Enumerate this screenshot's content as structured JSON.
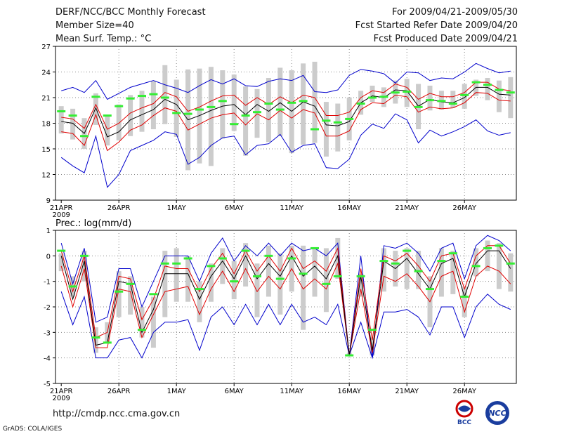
{
  "header": {
    "title": "DERF/NCC/BCC Monthly Forecast",
    "member_size": "Member Size=40",
    "variable": "Mean Surf. Temp.: °C",
    "period": "For 2009/04/21-2009/05/30",
    "fcst_started": "Fcst Started Refer Date 2009/04/20",
    "fcst_produced": "Fcst Produced Date 2009/04/21"
  },
  "footer": {
    "url": "http://cmdp.ncc.cma.gov.cn",
    "credit": "GrADS: COLA/IGES",
    "logo_bcc": "BCC",
    "logo_ncc": "NCC"
  },
  "colors": {
    "mean": "#000000",
    "spread": "#e00000",
    "envelope": "#0000cc",
    "obs": "#33ee33",
    "box": "#cccccc"
  },
  "chart_data": [
    {
      "type": "line",
      "title": "Mean Surf. Temp.: °C",
      "xlabel": "",
      "ylabel": "°C",
      "x_ticks": [
        "21APR\n2009",
        "26APR",
        "1MAY",
        "6MAY",
        "11MAY",
        "16MAY",
        "21MAY",
        "26MAY"
      ],
      "ylim": [
        9,
        27
      ],
      "yticks": [
        9,
        12,
        15,
        18,
        21,
        24,
        27
      ],
      "days": 40,
      "series": [
        {
          "name": "mean",
          "values": [
            18.2,
            18.0,
            16.8,
            19.8,
            16.4,
            17.0,
            18.4,
            19.0,
            19.6,
            20.8,
            20.2,
            18.4,
            18.9,
            19.5,
            20.0,
            20.2,
            19.0,
            20.2,
            19.4,
            20.4,
            19.4,
            20.5,
            20.0,
            17.8,
            17.7,
            18.2,
            20.4,
            21.2,
            21.0,
            21.9,
            21.8,
            20.0,
            20.8,
            20.5,
            20.4,
            21.0,
            22.2,
            22.2,
            21.4,
            21.3
          ]
        },
        {
          "name": "upper",
          "values": [
            18.7,
            18.5,
            17.4,
            20.2,
            17.3,
            18.0,
            19.2,
            19.8,
            20.3,
            21.6,
            21.1,
            19.4,
            19.9,
            20.6,
            21.2,
            21.3,
            20.1,
            21.0,
            20.2,
            21.1,
            20.4,
            21.3,
            21.0,
            18.9,
            18.9,
            19.3,
            21.0,
            21.8,
            21.6,
            22.6,
            22.2,
            20.8,
            21.5,
            21.1,
            21.1,
            21.6,
            22.8,
            22.8,
            22.0,
            21.8
          ]
        },
        {
          "name": "lower",
          "values": [
            17.0,
            16.8,
            15.4,
            19.0,
            14.8,
            15.8,
            17.2,
            17.8,
            18.9,
            19.8,
            19.4,
            17.2,
            17.9,
            18.6,
            19.0,
            19.2,
            17.8,
            19.1,
            18.4,
            19.5,
            18.6,
            19.6,
            19.2,
            16.5,
            16.5,
            17.1,
            19.6,
            20.4,
            20.3,
            21.3,
            21.1,
            19.3,
            19.9,
            19.7,
            19.8,
            20.4,
            21.6,
            21.5,
            20.7,
            20.6
          ]
        },
        {
          "name": "max",
          "values": [
            21.8,
            22.2,
            21.6,
            23.0,
            20.8,
            21.5,
            22.2,
            22.6,
            23.0,
            22.5,
            22.1,
            21.6,
            22.4,
            23.1,
            22.6,
            23.2,
            22.4,
            22.3,
            22.9,
            23.2,
            23.0,
            23.6,
            21.7,
            21.6,
            21.9,
            23.6,
            24.3,
            24.1,
            23.8,
            22.7,
            24.0,
            23.9,
            23.0,
            23.3,
            23.2,
            24.0,
            25.0,
            24.4,
            23.9,
            24.1
          ]
        },
        {
          "name": "min",
          "values": [
            14.0,
            13.0,
            12.2,
            16.5,
            10.5,
            12.0,
            14.8,
            15.4,
            16.0,
            17.0,
            16.7,
            13.2,
            14.0,
            15.4,
            16.3,
            16.5,
            14.3,
            15.4,
            15.6,
            16.7,
            14.6,
            15.4,
            15.6,
            12.8,
            12.7,
            13.8,
            16.6,
            17.9,
            17.4,
            19.1,
            18.4,
            15.7,
            17.2,
            16.5,
            17.0,
            17.6,
            18.4,
            17.1,
            16.6,
            16.9
          ]
        },
        {
          "name": "box_hi",
          "values": [
            20.0,
            19.7,
            18.6,
            21.5,
            18.8,
            20.2,
            21.3,
            21.8,
            22.9,
            24.8,
            23.1,
            24.3,
            24.4,
            24.6,
            24.2,
            23.7,
            22.3,
            22.0,
            23.3,
            24.5,
            24.2,
            25.0,
            25.2,
            20.5,
            20.3,
            21.0,
            21.8,
            22.4,
            22.2,
            23.0,
            23.2,
            22.6,
            22.4,
            21.8,
            21.8,
            22.6,
            23.1,
            23.3,
            23.0,
            23.4
          ]
        },
        {
          "name": "box_lo",
          "values": [
            16.8,
            16.1,
            15.0,
            17.8,
            15.4,
            16.0,
            16.5,
            17.0,
            17.3,
            17.9,
            16.4,
            12.5,
            13.3,
            13.0,
            16.2,
            17.1,
            14.2,
            16.3,
            15.8,
            16.5,
            14.5,
            15.5,
            15.7,
            14.1,
            14.7,
            16.0,
            19.0,
            20.5,
            19.9,
            20.3,
            19.9,
            17.3,
            19.5,
            19.6,
            19.8,
            19.7,
            21.2,
            20.7,
            19.3,
            18.6
          ]
        },
        {
          "name": "obs",
          "values": [
            19.4,
            18.9,
            16.5,
            21.1,
            18.9,
            20.0,
            20.9,
            21.2,
            21.4,
            21.0,
            19.2,
            19.1,
            19.6,
            19.9,
            20.6,
            17.9,
            18.9,
            19.3,
            20.3,
            19.6,
            20.4,
            20.6,
            17.3,
            18.3,
            18.1,
            18.5,
            20.3,
            21.0,
            21.1,
            21.6,
            21.7,
            19.9,
            20.7,
            20.6,
            20.3,
            21.3,
            22.8,
            22.5,
            21.9,
            21.6
          ]
        }
      ]
    },
    {
      "type": "line",
      "title": "Prec.: log(mm/d)",
      "xlabel": "",
      "ylabel": "log(mm/d)",
      "x_ticks": [
        "21APR\n2009",
        "26APR",
        "1MAY",
        "6MAY",
        "11MAY",
        "16MAY",
        "21MAY",
        "26MAY"
      ],
      "ylim": [
        -5,
        1
      ],
      "yticks": [
        -5,
        -4,
        -3,
        -2,
        -1,
        0,
        1
      ],
      "days": 40,
      "series": [
        {
          "name": "mean",
          "values": [
            0.0,
            -1.7,
            -0.2,
            -3.5,
            -3.4,
            -1.0,
            -1.1,
            -3.0,
            -2.1,
            -0.7,
            -0.7,
            -0.7,
            -1.7,
            -0.8,
            -0.2,
            -0.9,
            0.0,
            -0.9,
            -0.3,
            -0.8,
            0.0,
            -0.8,
            -0.4,
            -0.9,
            0.0,
            -3.9,
            -0.8,
            -3.7,
            -0.2,
            -0.5,
            -0.1,
            -0.7,
            -1.3,
            -0.3,
            -0.1,
            -1.6,
            -0.3,
            0.2,
            0.2,
            -0.5
          ]
        },
        {
          "name": "upper",
          "values": [
            0.2,
            -1.4,
            0.0,
            -3.2,
            -3.0,
            -0.8,
            -0.9,
            -2.5,
            -1.7,
            -0.4,
            -0.5,
            -0.5,
            -1.4,
            -0.5,
            0.1,
            -0.7,
            0.2,
            -0.6,
            0.0,
            -0.6,
            0.3,
            -0.5,
            -0.2,
            -0.6,
            0.3,
            -3.9,
            -0.5,
            -3.3,
            0.0,
            -0.2,
            0.1,
            -0.4,
            -1.0,
            0.0,
            0.1,
            -1.3,
            0.0,
            0.4,
            0.4,
            -0.3
          ]
        },
        {
          "name": "lower",
          "values": [
            -0.4,
            -2.0,
            -0.5,
            -3.6,
            -3.6,
            -1.3,
            -1.4,
            -3.2,
            -2.3,
            -1.4,
            -1.3,
            -1.2,
            -2.3,
            -1.3,
            -0.6,
            -1.4,
            -0.5,
            -1.4,
            -0.8,
            -1.3,
            -0.5,
            -1.3,
            -0.9,
            -1.3,
            -0.3,
            -3.9,
            -1.3,
            -3.8,
            -0.8,
            -1.0,
            -0.7,
            -1.2,
            -1.8,
            -0.8,
            -0.6,
            -2.2,
            -0.8,
            -0.4,
            -0.6,
            -1.1
          ]
        },
        {
          "name": "max",
          "values": [
            0.5,
            -1.1,
            0.3,
            -2.6,
            -2.4,
            -0.5,
            -0.5,
            -2.0,
            -1.0,
            0.0,
            0.0,
            0.0,
            -1.0,
            0.1,
            0.7,
            -0.2,
            0.4,
            0.0,
            0.5,
            0.0,
            0.5,
            0.2,
            0.3,
            0.0,
            0.5,
            -3.9,
            0.0,
            -4.0,
            0.4,
            0.3,
            0.5,
            0.1,
            -0.6,
            0.3,
            0.5,
            -0.9,
            0.4,
            0.8,
            0.6,
            0.2
          ]
        },
        {
          "name": "min",
          "values": [
            -1.4,
            -2.7,
            -1.6,
            -4.0,
            -4.0,
            -3.3,
            -3.2,
            -4.0,
            -3.0,
            -2.6,
            -2.6,
            -2.5,
            -3.7,
            -2.4,
            -2.0,
            -2.7,
            -1.9,
            -2.7,
            -1.9,
            -2.7,
            -1.9,
            -2.6,
            -2.4,
            -2.7,
            -1.9,
            -3.9,
            -2.6,
            -4.0,
            -2.2,
            -2.2,
            -2.1,
            -2.4,
            -3.1,
            -2.0,
            -2.0,
            -3.2,
            -2.0,
            -1.5,
            -1.9,
            -2.1
          ]
        },
        {
          "name": "box_hi",
          "values": [
            0.1,
            -0.8,
            0.2,
            -2.8,
            -2.6,
            -0.6,
            -0.8,
            -2.0,
            -1.6,
            0.2,
            0.3,
            0.0,
            -1.0,
            -0.3,
            0.3,
            -0.2,
            0.5,
            -0.3,
            0.4,
            0.1,
            0.4,
            0.4,
            0.3,
            0.3,
            0.7,
            -3.8,
            -0.7,
            -3.2,
            0.3,
            0.2,
            0.3,
            0.2,
            -0.8,
            0.3,
            0.2,
            -1.2,
            0.3,
            0.6,
            0.5,
            0.1
          ]
        },
        {
          "name": "box_lo",
          "values": [
            -0.6,
            -1.6,
            -1.0,
            -3.8,
            -3.4,
            -2.4,
            -2.3,
            -3.2,
            -3.6,
            -2.4,
            -1.8,
            -1.8,
            -2.6,
            -1.8,
            -1.1,
            -1.7,
            -1.2,
            -2.4,
            -1.6,
            -2.3,
            -1.4,
            -2.9,
            -1.6,
            -2.2,
            -0.9,
            -3.9,
            -1.6,
            -3.9,
            -1.4,
            -1.2,
            -1.3,
            -1.3,
            -2.8,
            -1.6,
            -1.5,
            -2.4,
            -0.8,
            -0.6,
            -1.3,
            -1.4
          ]
        },
        {
          "name": "obs",
          "values": [
            0.2,
            -1.2,
            0.0,
            -3.2,
            -3.4,
            -1.4,
            -1.1,
            -2.9,
            -1.5,
            -0.3,
            -0.3,
            -0.1,
            -1.3,
            -0.4,
            -0.1,
            -1.0,
            0.2,
            -0.8,
            0.0,
            -0.9,
            -0.1,
            -0.7,
            0.3,
            -1.1,
            -0.8,
            -3.9,
            -0.8,
            -2.9,
            -0.2,
            -0.3,
            0.2,
            -0.6,
            -1.3,
            -0.2,
            0.1,
            -1.6,
            -0.4,
            0.3,
            0.4,
            -0.3
          ]
        }
      ]
    }
  ]
}
